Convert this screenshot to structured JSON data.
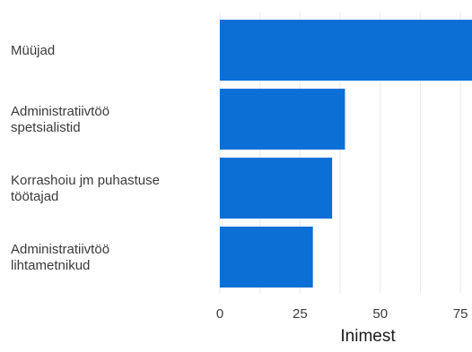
{
  "chart_data": {
    "type": "bar",
    "orientation": "horizontal",
    "categories": [
      [
        "Müüjad"
      ],
      [
        "Administratiivtöö",
        "spetsialistid"
      ],
      [
        "Korrashoiu jm puhastuse",
        "töötajad"
      ],
      [
        "Administratiivtöö",
        "lihtametnikud"
      ]
    ],
    "values": [
      80,
      39,
      35,
      29
    ],
    "xlabel": "Inimest",
    "ylabel": "",
    "x_ticks": [
      0,
      25,
      50,
      75
    ],
    "xlim": [
      0,
      80
    ],
    "bar_color": "#0b6fd6",
    "grid": true
  }
}
